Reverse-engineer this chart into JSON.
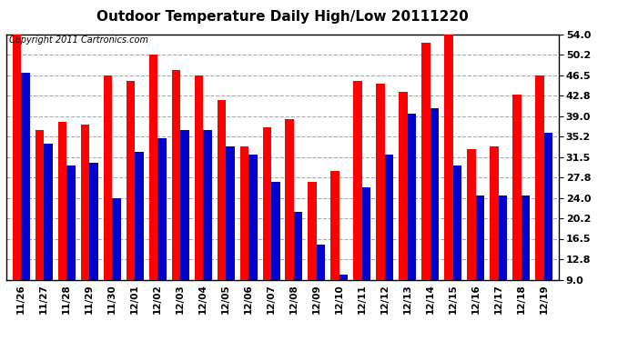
{
  "title": "Outdoor Temperature Daily High/Low 20111220",
  "copyright": "Copyright 2011 Cartronics.com",
  "dates": [
    "11/26",
    "11/27",
    "11/28",
    "11/29",
    "11/30",
    "12/01",
    "12/02",
    "12/03",
    "12/04",
    "12/05",
    "12/06",
    "12/07",
    "12/08",
    "12/09",
    "12/10",
    "12/11",
    "12/12",
    "12/13",
    "12/14",
    "12/15",
    "12/16",
    "12/17",
    "12/18",
    "12/19"
  ],
  "highs": [
    54.0,
    36.5,
    38.0,
    37.5,
    46.5,
    45.5,
    50.2,
    47.5,
    46.5,
    42.0,
    33.5,
    37.0,
    38.5,
    27.0,
    29.0,
    45.5,
    45.0,
    43.5,
    52.5,
    54.0,
    33.0,
    33.5,
    43.0,
    46.5
  ],
  "lows": [
    47.0,
    34.0,
    30.0,
    30.5,
    24.0,
    32.5,
    35.0,
    36.5,
    36.5,
    33.5,
    32.0,
    27.0,
    21.5,
    15.5,
    10.0,
    26.0,
    32.0,
    39.5,
    40.5,
    30.0,
    24.5,
    24.5,
    24.5,
    36.0
  ],
  "high_color": "#ff0000",
  "low_color": "#0000cc",
  "bg_color": "#ffffff",
  "grid_color": "#aaaaaa",
  "bar_width": 0.38,
  "ylim": [
    9.0,
    54.0
  ],
  "yticks": [
    9.0,
    12.8,
    16.5,
    20.2,
    24.0,
    27.8,
    31.5,
    35.2,
    39.0,
    42.8,
    46.5,
    50.2,
    54.0
  ],
  "title_fontsize": 11,
  "copyright_fontsize": 7
}
